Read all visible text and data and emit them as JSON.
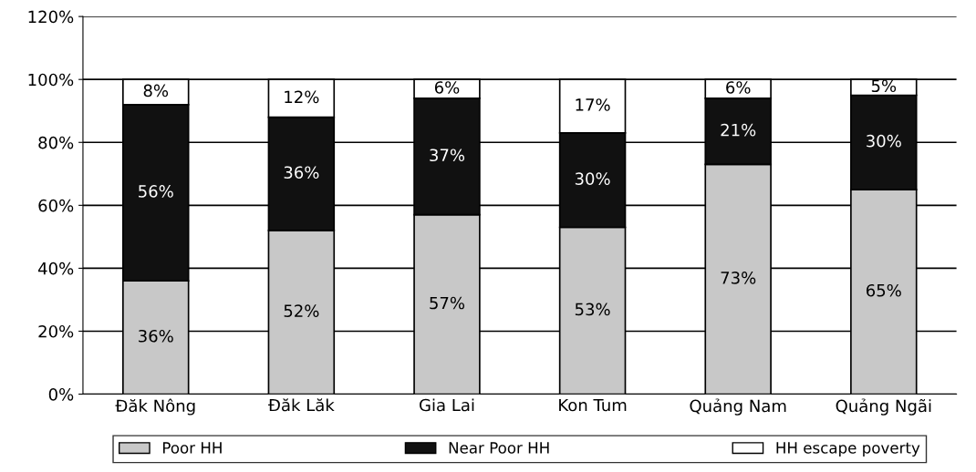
{
  "chart_data": {
    "type": "bar",
    "stacked": true,
    "categories": [
      "Đăk Nông",
      "Đăk Lăk",
      "Gia Lai",
      "Kon Tum",
      "Quảng Nam",
      "Quảng Ngãi"
    ],
    "series": [
      {
        "name": "Poor HH",
        "color": "#c8c8c8",
        "values": [
          36,
          52,
          57,
          53,
          73,
          65
        ],
        "value_labels": [
          "36%",
          "52%",
          "57%",
          "53%",
          "73%",
          "65%"
        ]
      },
      {
        "name": "Near Poor HH",
        "color": "#111111",
        "values": [
          56,
          36,
          37,
          30,
          21,
          30
        ],
        "value_labels": [
          "56%",
          "36%",
          "37%",
          "30%",
          "21%",
          "30%"
        ]
      },
      {
        "name": "HH escape poverty",
        "color": "#ffffff",
        "values": [
          8,
          12,
          6,
          17,
          6,
          5
        ],
        "value_labels": [
          "8%",
          "12%",
          "6%",
          "17%",
          "6%",
          "5%"
        ]
      }
    ],
    "ylim": [
      0,
      120
    ],
    "yticks": [
      {
        "value": 0,
        "label": "0%"
      },
      {
        "value": 20,
        "label": "20%"
      },
      {
        "value": 40,
        "label": "40%"
      },
      {
        "value": 60,
        "label": "60%"
      },
      {
        "value": 80,
        "label": "80%"
      },
      {
        "value": 100,
        "label": "100%"
      },
      {
        "value": 120,
        "label": "120%"
      }
    ],
    "grid": "y",
    "legend": "bottom"
  }
}
